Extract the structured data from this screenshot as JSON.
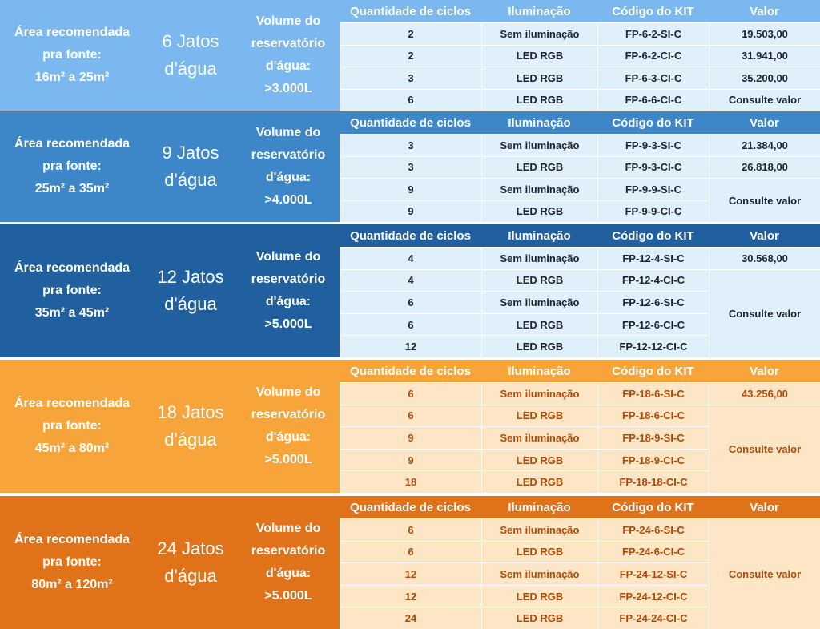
{
  "headers": {
    "cycles": "Quantidade de ciclos",
    "lighting": "Iluminação",
    "kit_code": "Código do KIT",
    "value": "Valor"
  },
  "sections": [
    {
      "area": "Área recomendada\npra fonte:\n16m² a 25m²",
      "jets": "6 Jatos\nd'água",
      "volume": "Volume do\nreservatório\nd'água:\n>3.000L",
      "color": "#7ab8ef",
      "header_color": "#7ab8ef",
      "rows": [
        {
          "cycles": "2",
          "lighting": "Sem iluminação",
          "code": "FP-6-2-SI-C"
        },
        {
          "cycles": "2",
          "lighting": "LED RGB",
          "code": "FP-6-2-CI-C"
        },
        {
          "cycles": "3",
          "lighting": "LED RGB",
          "code": "FP-6-3-CI-C"
        },
        {
          "cycles": "6",
          "lighting": "LED RGB",
          "code": "FP-6-6-CI-C"
        }
      ],
      "values": [
        {
          "text": "19.503,00",
          "span": 1
        },
        {
          "text": "31.941,00",
          "span": 1
        },
        {
          "text": "35.200,00",
          "span": 1
        },
        {
          "text": "Consulte valor",
          "span": 1
        }
      ]
    },
    {
      "area": "Área recomendada\npra fonte:\n25m² a 35m²",
      "jets": "9 Jatos\nd'água",
      "volume": "Volume do\nreservatório\nd'água:\n>4.000L",
      "color": "#3d86c8",
      "header_color": "#3d86c8",
      "rows": [
        {
          "cycles": "3",
          "lighting": "Sem iluminação",
          "code": "FP-9-3-SI-C"
        },
        {
          "cycles": "3",
          "lighting": "LED RGB",
          "code": "FP-9-3-CI-C"
        },
        {
          "cycles": "9",
          "lighting": "Sem iluminação",
          "code": "FP-9-9-SI-C"
        },
        {
          "cycles": "9",
          "lighting": "LED RGB",
          "code": "FP-9-9-CI-C"
        }
      ],
      "values": [
        {
          "text": "21.384,00",
          "span": 1
        },
        {
          "text": "26.818,00",
          "span": 1
        },
        {
          "text": "Consulte valor",
          "span": 2
        }
      ]
    },
    {
      "area": "Área recomendada\npra fonte:\n35m² a 45m²",
      "jets": "12 Jatos\nd'água",
      "volume": "Volume do\nreservatório\nd'água:\n>5.000L",
      "color": "#20609f",
      "header_color": "#20609f",
      "rows": [
        {
          "cycles": "4",
          "lighting": "Sem iluminação",
          "code": "FP-12-4-SI-C"
        },
        {
          "cycles": "4",
          "lighting": "LED RGB",
          "code": "FP-12-4-CI-C"
        },
        {
          "cycles": "6",
          "lighting": "Sem iluminação",
          "code": "FP-12-6-SI-C"
        },
        {
          "cycles": "6",
          "lighting": "LED RGB",
          "code": "FP-12-6-CI-C"
        },
        {
          "cycles": "12",
          "lighting": "LED RGB",
          "code": "FP-12-12-CI-C"
        }
      ],
      "values": [
        {
          "text": "30.568,00",
          "span": 1
        },
        {
          "text": "Consulte valor",
          "span": 4
        }
      ]
    },
    {
      "area": "Área recomendada\npra fonte:\n45m² a 80m²",
      "jets": "18 Jatos\nd'água",
      "volume": "Volume do\nreservatório\nd'água:\n>5.000L",
      "color": "#f7a53a",
      "header_color": "#f7a53a",
      "rows": [
        {
          "cycles": "6",
          "lighting": "Sem iluminação",
          "code": "FP-18-6-SI-C"
        },
        {
          "cycles": "6",
          "lighting": "LED RGB",
          "code": "FP-18-6-CI-C"
        },
        {
          "cycles": "9",
          "lighting": "Sem iluminação",
          "code": "FP-18-9-SI-C"
        },
        {
          "cycles": "9",
          "lighting": "LED RGB",
          "code": "FP-18-9-CI-C"
        },
        {
          "cycles": "18",
          "lighting": "LED RGB",
          "code": "FP-18-18-CI-C"
        }
      ],
      "values": [
        {
          "text": "43.256,00",
          "span": 1
        },
        {
          "text": "Consulte valor",
          "span": 4
        }
      ]
    },
    {
      "area": "Área recomendada\npra fonte:\n80m² a 120m²",
      "jets": "24 Jatos\nd'água",
      "volume": "Volume do\nreservatório\nd'água:\n>5.000L",
      "color": "#e0721a",
      "header_color": "#e0721a",
      "rows": [
        {
          "cycles": "6",
          "lighting": "Sem iluminação",
          "code": "FP-24-6-SI-C"
        },
        {
          "cycles": "6",
          "lighting": "LED RGB",
          "code": "FP-24-6-CI-C"
        },
        {
          "cycles": "12",
          "lighting": "Sem iluminação",
          "code": "FP-24-12-SI-C"
        },
        {
          "cycles": "12",
          "lighting": "LED RGB",
          "code": "FP-24-12-CI-C"
        },
        {
          "cycles": "24",
          "lighting": "LED RGB",
          "code": "FP-24-24-CI-C"
        }
      ],
      "values": [
        {
          "text": "Consulte valor",
          "span": 5
        }
      ]
    }
  ]
}
